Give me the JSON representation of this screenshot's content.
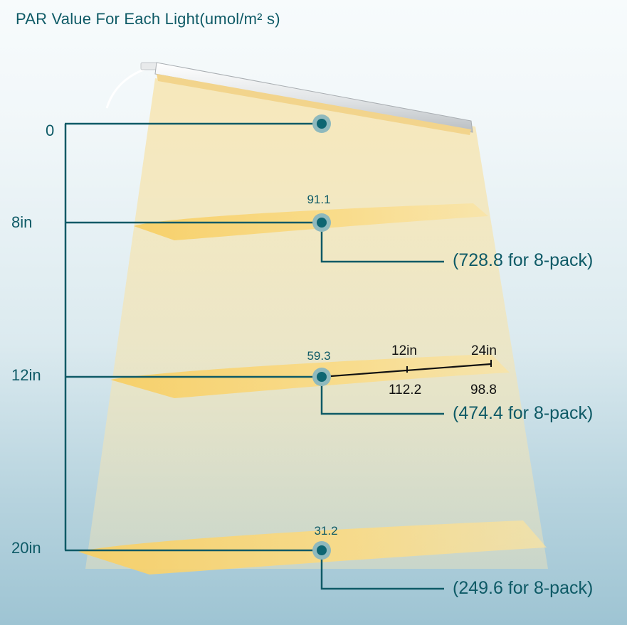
{
  "title": "PAR Value For Each Light(umol/m² s)",
  "colors": {
    "line": "#0e5a66",
    "dot": "#0e6672",
    "dot_halo": "#8fb9bd",
    "light_band": "#f9d77a",
    "beam": "#f6e7b6"
  },
  "levels": [
    {
      "distance": "0",
      "par": "",
      "pack": ""
    },
    {
      "distance": "8in",
      "par": "91.1",
      "pack": "(728.8 for 8-pack)"
    },
    {
      "distance": "12in",
      "par": "59.3",
      "pack": "(474.4 for 8-pack)"
    },
    {
      "distance": "20in",
      "par": "31.2",
      "pack": "(249.6 for 8-pack)"
    }
  ],
  "side_readings": {
    "label_12": "12in",
    "label_24": "24in",
    "value_12": "112.2",
    "value_24": "98.8"
  }
}
